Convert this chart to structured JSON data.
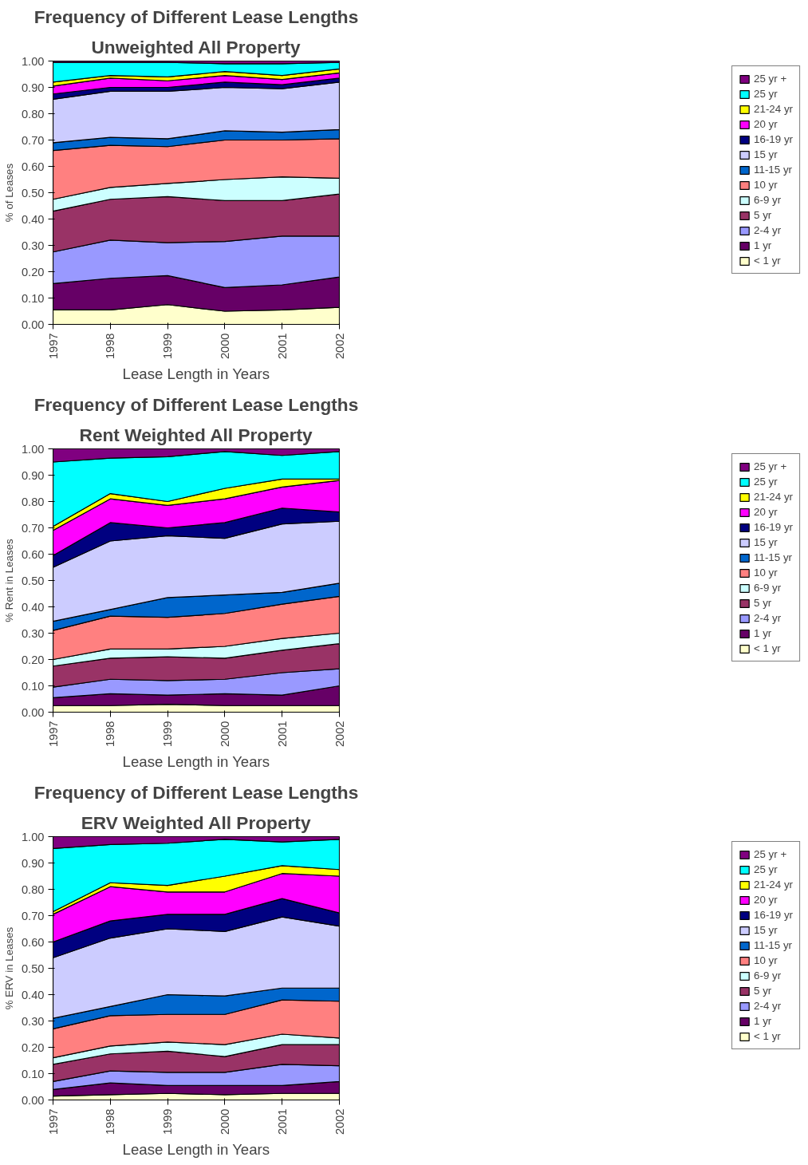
{
  "chart_data": [
    {
      "type": "area",
      "stacked": true,
      "title": "Frequency of Different Lease Lengths",
      "subtitle": "Unweighted All Property",
      "xlabel": "Lease Length in Years",
      "ylabel": "% of Leases",
      "x": [
        1997,
        1998,
        1999,
        2000,
        2001,
        2002
      ],
      "xlim": [
        1997,
        2002
      ],
      "xticks": [
        1997,
        1998,
        1999,
        2000,
        2001,
        2002
      ],
      "ylim": [
        0,
        1
      ],
      "yticks": [
        {
          "value": 0,
          "label": "0.00"
        },
        {
          "value": 0.1,
          "label": "0.10"
        },
        {
          "value": 0.2,
          "label": "0.20"
        },
        {
          "value": 0.3,
          "label": "0.30"
        },
        {
          "value": 0.4,
          "label": "0.40"
        },
        {
          "value": 0.5,
          "label": "0.50"
        },
        {
          "value": 0.6,
          "label": "0.60"
        },
        {
          "value": 0.7,
          "label": "0.70"
        },
        {
          "value": 0.8,
          "label": "0.80"
        },
        {
          "value": 0.9,
          "label": "0.90"
        },
        {
          "value": 1,
          "label": "1.00"
        }
      ],
      "grid": false,
      "legend": "right",
      "series": [
        {
          "name": "< 1 yr",
          "color": "#ffffcc",
          "values": [
            0.055,
            0.055,
            0.075,
            0.05,
            0.055,
            0.065
          ]
        },
        {
          "name": "1 yr",
          "color": "#660066",
          "values": [
            0.1,
            0.12,
            0.11,
            0.09,
            0.095,
            0.115
          ]
        },
        {
          "name": "2-4 yr",
          "color": "#9999ff",
          "values": [
            0.12,
            0.145,
            0.125,
            0.175,
            0.185,
            0.155
          ]
        },
        {
          "name": "5 yr",
          "color": "#993366",
          "values": [
            0.155,
            0.155,
            0.175,
            0.155,
            0.135,
            0.16
          ]
        },
        {
          "name": "6-9 yr",
          "color": "#ccffff",
          "values": [
            0.045,
            0.045,
            0.05,
            0.08,
            0.09,
            0.06
          ]
        },
        {
          "name": "10 yr",
          "color": "#ff8080",
          "values": [
            0.185,
            0.16,
            0.14,
            0.15,
            0.14,
            0.15
          ]
        },
        {
          "name": "11-15 yr",
          "color": "#0066cc",
          "values": [
            0.03,
            0.03,
            0.03,
            0.035,
            0.03,
            0.035
          ]
        },
        {
          "name": "15 yr",
          "color": "#ccccff",
          "values": [
            0.165,
            0.175,
            0.18,
            0.165,
            0.165,
            0.18
          ]
        },
        {
          "name": "16-19 yr",
          "color": "#000080",
          "values": [
            0.02,
            0.015,
            0.015,
            0.02,
            0.015,
            0.015
          ]
        },
        {
          "name": "20 yr",
          "color": "#ff00ff",
          "values": [
            0.03,
            0.035,
            0.025,
            0.025,
            0.02,
            0.02
          ]
        },
        {
          "name": "21-24 yr",
          "color": "#ffff00",
          "values": [
            0.015,
            0.01,
            0.015,
            0.015,
            0.015,
            0.015
          ]
        },
        {
          "name": "25 yr",
          "color": "#00ffff",
          "values": [
            0.075,
            0.05,
            0.055,
            0.03,
            0.045,
            0.025
          ]
        },
        {
          "name": "25 yr +",
          "color": "#800080",
          "values": [
            0.005,
            0.005,
            0.005,
            0.01,
            0.01,
            0.005
          ]
        }
      ]
    },
    {
      "type": "area",
      "stacked": true,
      "title": "Frequency of Different Lease Lengths",
      "subtitle": "Rent Weighted All Property",
      "xlabel": "Lease Length in Years",
      "ylabel": "% Rent in Leases",
      "x": [
        1997,
        1998,
        1999,
        2000,
        2001,
        2002
      ],
      "xlim": [
        1997,
        2002
      ],
      "xticks": [
        1997,
        1998,
        1999,
        2000,
        2001,
        2002
      ],
      "ylim": [
        0,
        1
      ],
      "yticks": [
        {
          "value": 0,
          "label": "0.00"
        },
        {
          "value": 0.1,
          "label": "0.10"
        },
        {
          "value": 0.2,
          "label": "0.20"
        },
        {
          "value": 0.3,
          "label": "0.30"
        },
        {
          "value": 0.4,
          "label": "0.40"
        },
        {
          "value": 0.5,
          "label": "0.50"
        },
        {
          "value": 0.6,
          "label": "0.60"
        },
        {
          "value": 0.7,
          "label": "0.70"
        },
        {
          "value": 0.8,
          "label": "0.80"
        },
        {
          "value": 0.9,
          "label": "0.90"
        },
        {
          "value": 1,
          "label": "1.00"
        }
      ],
      "grid": false,
      "legend": "right",
      "series": [
        {
          "name": "< 1 yr",
          "color": "#ffffcc",
          "values": [
            0.025,
            0.025,
            0.03,
            0.025,
            0.025,
            0.025
          ]
        },
        {
          "name": "1 yr",
          "color": "#660066",
          "values": [
            0.03,
            0.045,
            0.035,
            0.045,
            0.04,
            0.075
          ]
        },
        {
          "name": "2-4 yr",
          "color": "#9999ff",
          "values": [
            0.04,
            0.055,
            0.055,
            0.055,
            0.085,
            0.065
          ]
        },
        {
          "name": "5 yr",
          "color": "#993366",
          "values": [
            0.08,
            0.08,
            0.09,
            0.08,
            0.085,
            0.095
          ]
        },
        {
          "name": "6-9 yr",
          "color": "#ccffff",
          "values": [
            0.025,
            0.035,
            0.03,
            0.045,
            0.045,
            0.04
          ]
        },
        {
          "name": "10 yr",
          "color": "#ff8080",
          "values": [
            0.11,
            0.125,
            0.12,
            0.125,
            0.13,
            0.14
          ]
        },
        {
          "name": "11-15 yr",
          "color": "#0066cc",
          "values": [
            0.035,
            0.025,
            0.075,
            0.07,
            0.045,
            0.05
          ]
        },
        {
          "name": "15 yr",
          "color": "#ccccff",
          "values": [
            0.205,
            0.26,
            0.235,
            0.215,
            0.26,
            0.235
          ]
        },
        {
          "name": "16-19 yr",
          "color": "#000080",
          "values": [
            0.045,
            0.07,
            0.03,
            0.06,
            0.06,
            0.035
          ]
        },
        {
          "name": "20 yr",
          "color": "#ff00ff",
          "values": [
            0.095,
            0.09,
            0.085,
            0.09,
            0.08,
            0.12
          ]
        },
        {
          "name": "21-24 yr",
          "color": "#ffff00",
          "values": [
            0.015,
            0.02,
            0.015,
            0.04,
            0.03,
            0.005
          ]
        },
        {
          "name": "25 yr",
          "color": "#00ffff",
          "values": [
            0.245,
            0.135,
            0.17,
            0.14,
            0.09,
            0.105
          ]
        },
        {
          "name": "25 yr +",
          "color": "#800080",
          "values": [
            0.05,
            0.035,
            0.03,
            0.01,
            0.025,
            0.01
          ]
        }
      ]
    },
    {
      "type": "area",
      "stacked": true,
      "title": "Frequency of Different Lease Lengths",
      "subtitle": "ERV Weighted All Property",
      "xlabel": "Lease Length in Years",
      "ylabel": "% ERV in Leases",
      "x": [
        1997,
        1998,
        1999,
        2000,
        2001,
        2002
      ],
      "xlim": [
        1997,
        2002
      ],
      "xticks": [
        1997,
        1998,
        1999,
        2000,
        2001,
        2002
      ],
      "ylim": [
        0,
        1
      ],
      "yticks": [
        {
          "value": 0,
          "label": "0.00"
        },
        {
          "value": 0.1,
          "label": "0.10"
        },
        {
          "value": 0.2,
          "label": "0.20"
        },
        {
          "value": 0.3,
          "label": "0.30"
        },
        {
          "value": 0.4,
          "label": "0.40"
        },
        {
          "value": 0.5,
          "label": "0.50"
        },
        {
          "value": 0.6,
          "label": "0.60"
        },
        {
          "value": 0.7,
          "label": "0.70"
        },
        {
          "value": 0.8,
          "label": "0.80"
        },
        {
          "value": 0.9,
          "label": "0.90"
        },
        {
          "value": 1,
          "label": "1.00"
        }
      ],
      "grid": false,
      "legend": "right",
      "series": [
        {
          "name": "< 1 yr",
          "color": "#ffffcc",
          "values": [
            0.015,
            0.02,
            0.025,
            0.02,
            0.025,
            0.025
          ]
        },
        {
          "name": "1 yr",
          "color": "#660066",
          "values": [
            0.025,
            0.045,
            0.03,
            0.035,
            0.03,
            0.045
          ]
        },
        {
          "name": "2-4 yr",
          "color": "#9999ff",
          "values": [
            0.03,
            0.045,
            0.05,
            0.05,
            0.08,
            0.06
          ]
        },
        {
          "name": "5 yr",
          "color": "#993366",
          "values": [
            0.065,
            0.065,
            0.08,
            0.06,
            0.075,
            0.08
          ]
        },
        {
          "name": "6-9 yr",
          "color": "#ccffff",
          "values": [
            0.025,
            0.03,
            0.035,
            0.045,
            0.04,
            0.025
          ]
        },
        {
          "name": "10 yr",
          "color": "#ff8080",
          "values": [
            0.11,
            0.115,
            0.105,
            0.115,
            0.13,
            0.14
          ]
        },
        {
          "name": "11-15 yr",
          "color": "#0066cc",
          "values": [
            0.04,
            0.035,
            0.075,
            0.07,
            0.045,
            0.05
          ]
        },
        {
          "name": "15 yr",
          "color": "#ccccff",
          "values": [
            0.23,
            0.26,
            0.25,
            0.245,
            0.27,
            0.235
          ]
        },
        {
          "name": "16-19 yr",
          "color": "#000080",
          "values": [
            0.06,
            0.065,
            0.055,
            0.065,
            0.07,
            0.05
          ]
        },
        {
          "name": "20 yr",
          "color": "#ff00ff",
          "values": [
            0.105,
            0.13,
            0.085,
            0.085,
            0.095,
            0.14
          ]
        },
        {
          "name": "21-24 yr",
          "color": "#ffff00",
          "values": [
            0.01,
            0.015,
            0.025,
            0.06,
            0.03,
            0.025
          ]
        },
        {
          "name": "25 yr",
          "color": "#00ffff",
          "values": [
            0.24,
            0.145,
            0.16,
            0.14,
            0.09,
            0.115
          ]
        },
        {
          "name": "25 yr +",
          "color": "#800080",
          "values": [
            0.045,
            0.03,
            0.025,
            0.01,
            0.02,
            0.01
          ]
        }
      ]
    }
  ]
}
